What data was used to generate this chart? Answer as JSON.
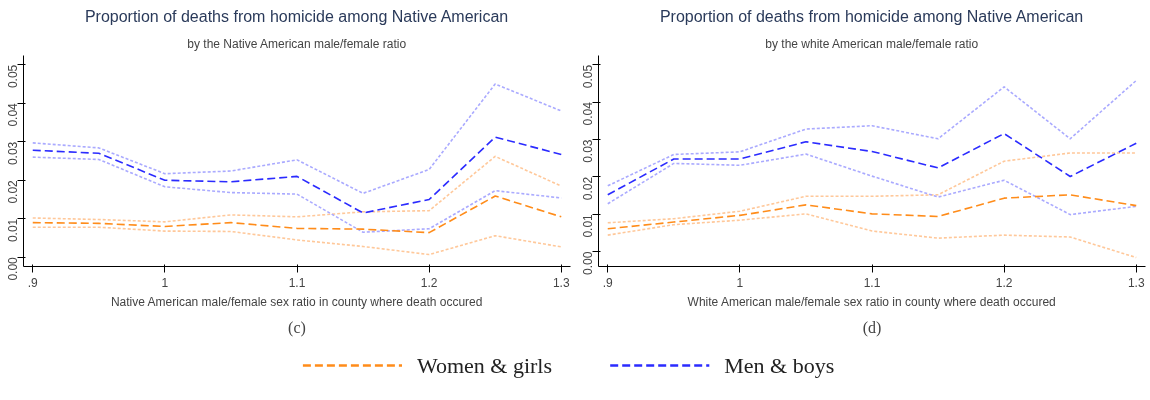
{
  "chart_data": [
    {
      "type": "line",
      "title": "Proportion of deaths from homicide among Native American",
      "subtitle": "by the Native American male/female ratio",
      "xlabel": "Native American male/female sex ratio in county where death occured",
      "annotations": [
        "(c)"
      ],
      "x": [
        0.9,
        0.95,
        1.0,
        1.05,
        1.1,
        1.15,
        1.2,
        1.25,
        1.3
      ],
      "xlim": [
        0.893,
        1.307
      ],
      "xticks": [
        {
          "value": 0.9,
          "label": ".9"
        },
        1,
        1.1,
        1.2,
        1.3
      ],
      "ylim": [
        -0.0024,
        0.0524
      ],
      "yticks": [
        {
          "value": 0,
          "label": "0.00"
        },
        {
          "value": 0.01,
          "label": "0.01"
        },
        {
          "value": 0.02,
          "label": "0.02"
        },
        {
          "value": 0.03,
          "label": "0.03"
        },
        {
          "value": 0.04,
          "label": "0.04"
        },
        {
          "value": 0.05,
          "label": "0.05"
        }
      ],
      "grid": false,
      "legend": "bottom",
      "line_style": "dashed",
      "marker": "none",
      "series": [
        {
          "color": "#ffc89a",
          "line_style": "dotted",
          "values": [
            0.0078,
            0.0078,
            0.0068,
            0.0067,
            0.0045,
            0.0028,
            0.0007,
            0.0056,
            0.0027
          ]
        },
        {
          "color": "#ffc89a",
          "line_style": "dotted",
          "values": [
            0.0102,
            0.0098,
            0.0092,
            0.011,
            0.0105,
            0.0118,
            0.0121,
            0.0262,
            0.0185
          ]
        },
        {
          "color": "#aaaaff",
          "line_style": "dotted",
          "values": [
            0.026,
            0.0254,
            0.0183,
            0.0168,
            0.0164,
            0.0065,
            0.0074,
            0.0173,
            0.0154
          ]
        },
        {
          "color": "#aaaaff",
          "line_style": "dotted",
          "values": [
            0.0297,
            0.0284,
            0.0217,
            0.0224,
            0.0253,
            0.0166,
            0.0228,
            0.045,
            0.038
          ]
        },
        {
          "name": "Women & girls",
          "color": "#ff8c1a",
          "values": [
            0.009,
            0.0088,
            0.008,
            0.009,
            0.0075,
            0.0073,
            0.0064,
            0.0159,
            0.0105
          ]
        },
        {
          "name": "Men & boys",
          "color": "#2b2bff",
          "values": [
            0.0278,
            0.027,
            0.02,
            0.0196,
            0.021,
            0.0115,
            0.015,
            0.0312,
            0.0267
          ]
        }
      ]
    },
    {
      "type": "line",
      "title": "Proportion of deaths from homicide among Native American",
      "subtitle": "by the white American male/female ratio",
      "xlabel": "White American male/female sex ratio in county where death occured",
      "annotations": [
        "(d)"
      ],
      "x": [
        0.9,
        0.95,
        1.0,
        1.05,
        1.1,
        1.15,
        1.2,
        1.25,
        1.3
      ],
      "xlim": [
        0.893,
        1.307
      ],
      "xticks": [
        {
          "value": 0.9,
          "label": ".9"
        },
        1,
        1.1,
        1.2,
        1.3
      ],
      "ylim": [
        -0.004,
        0.0525
      ],
      "yticks": [
        {
          "value": 0,
          "label": "0.00"
        },
        {
          "value": 0.01,
          "label": "0.01"
        },
        {
          "value": 0.02,
          "label": "0.02"
        },
        {
          "value": 0.03,
          "label": "0.03"
        },
        {
          "value": 0.04,
          "label": "0.04"
        },
        {
          "value": 0.05,
          "label": "0.05"
        }
      ],
      "grid": false,
      "line_style": "dashed",
      "marker": "none",
      "series": [
        {
          "color": "#ffc89a",
          "line_style": "dotted",
          "values": [
            0.0044,
            0.0072,
            0.0084,
            0.0101,
            0.0055,
            0.0036,
            0.0044,
            0.0039,
            -0.0016
          ]
        },
        {
          "color": "#ffc89a",
          "line_style": "dotted",
          "values": [
            0.0077,
            0.0088,
            0.0108,
            0.0148,
            0.0148,
            0.0152,
            0.0242,
            0.0264,
            0.0264
          ]
        },
        {
          "color": "#aaaaff",
          "line_style": "dotted",
          "values": [
            0.0128,
            0.0236,
            0.0231,
            0.0261,
            0.0202,
            0.0146,
            0.0191,
            0.0099,
            0.0121
          ]
        },
        {
          "color": "#aaaaff",
          "line_style": "dotted",
          "values": [
            0.0176,
            0.026,
            0.0267,
            0.0328,
            0.0337,
            0.0302,
            0.0441,
            0.0302,
            0.0458
          ]
        },
        {
          "color": "#ff8c1a",
          "values": [
            0.0061,
            0.0079,
            0.0097,
            0.0125,
            0.0101,
            0.0094,
            0.0143,
            0.0152,
            0.0123
          ]
        },
        {
          "color": "#2b2bff",
          "values": [
            0.0152,
            0.0248,
            0.0248,
            0.0294,
            0.0268,
            0.0224,
            0.0316,
            0.0201,
            0.029
          ]
        }
      ]
    }
  ]
}
